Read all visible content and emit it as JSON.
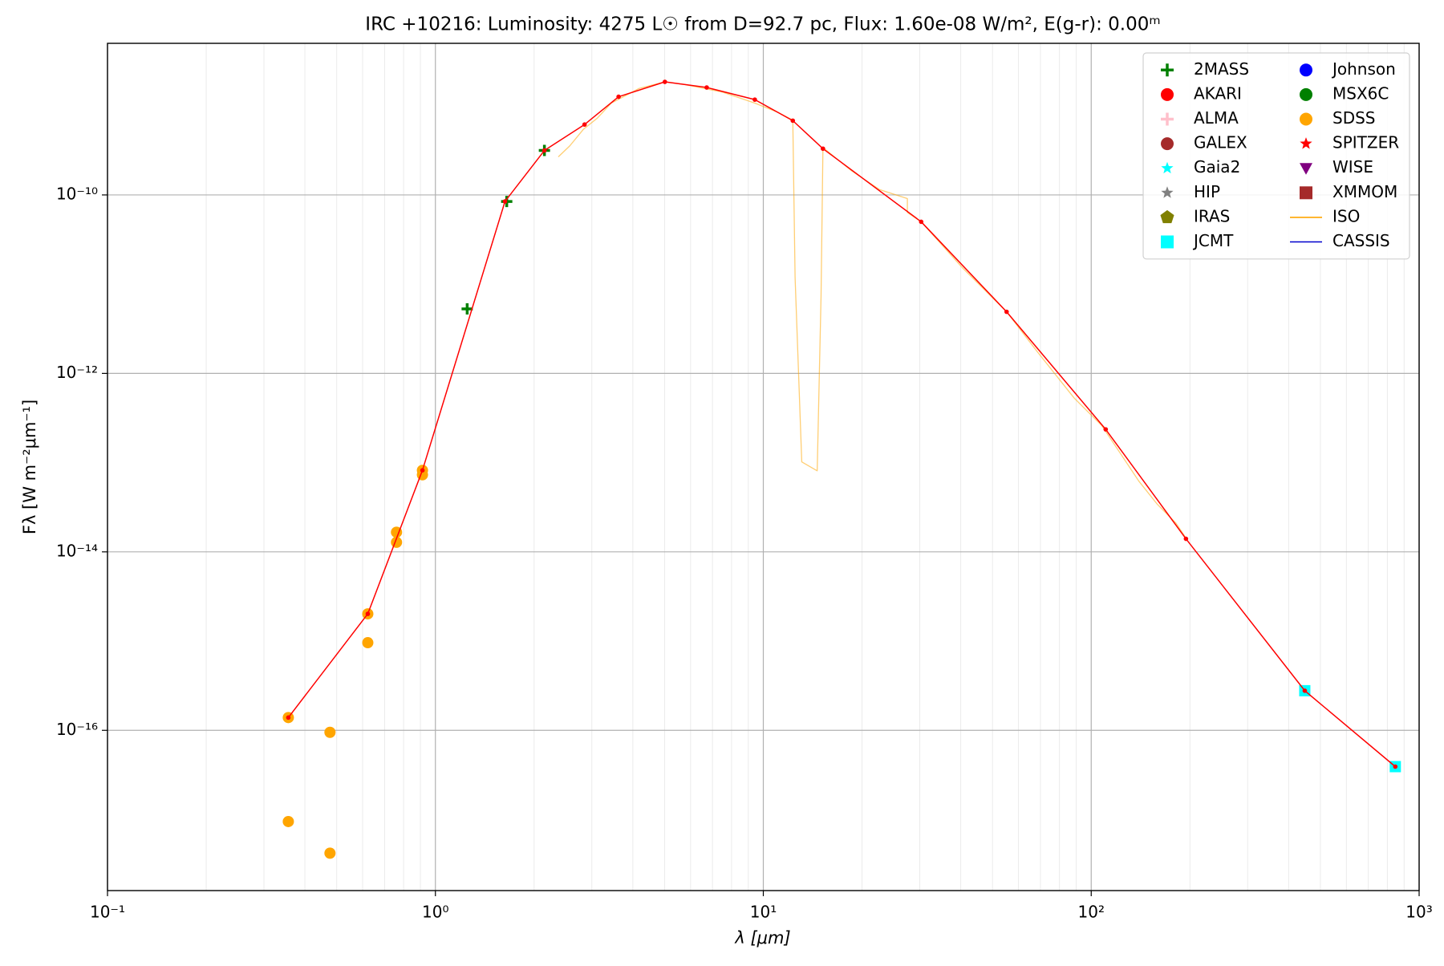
{
  "chart_data": {
    "type": "scatter",
    "title": "IRC +10216:  Luminosity: 4275 L☉ from D=92.7 pc, Flux: 1.60e-08 W/m², E(g-r): 0.00ᵐ",
    "x_label": "λ [μm]",
    "y_label": "Fλ [W m⁻²μm⁻¹]",
    "xscale": "log",
    "yscale": "log",
    "grid": true,
    "minor_grid": "x",
    "legend": "upper right",
    "xlim": [
      0.1,
      1000
    ],
    "ylim": [
      1.6e-18,
      5e-09
    ],
    "xticks": [
      {
        "value": 0.1,
        "label": "10⁻¹"
      },
      {
        "value": 1,
        "label": "10⁰"
      },
      {
        "value": 10,
        "label": "10¹"
      },
      {
        "value": 100,
        "label": "10²"
      },
      {
        "value": 1000,
        "label": "10³"
      }
    ],
    "yticks": [
      {
        "value": 1e-16,
        "label": "10⁻¹⁶"
      },
      {
        "value": 1e-14,
        "label": "10⁻¹⁴"
      },
      {
        "value": 1e-12,
        "label": "10⁻¹²"
      },
      {
        "value": 1e-10,
        "label": "10⁻¹⁰"
      }
    ],
    "series": [
      {
        "name": "2MASS",
        "color": "#008000",
        "marker": "plus",
        "x": [
          1.25,
          1.65,
          2.15
        ],
        "y": [
          5.28e-12,
          8.45e-11,
          3.15e-10
        ]
      },
      {
        "name": "AKARI",
        "color": "#ff0000",
        "marker": "circle",
        "x": [],
        "y": []
      },
      {
        "name": "ALMA",
        "color": "#ffc0cb",
        "marker": "plus",
        "x": [],
        "y": []
      },
      {
        "name": "GALEX",
        "color": "#a52a2a",
        "marker": "circle",
        "x": [],
        "y": []
      },
      {
        "name": "Gaia2",
        "color": "#00ffff",
        "marker": "star",
        "x": [],
        "y": []
      },
      {
        "name": "HIP",
        "color": "#808080",
        "marker": "star",
        "x": [],
        "y": []
      },
      {
        "name": "IRAS",
        "color": "#808000",
        "marker": "pentagon",
        "x": [],
        "y": []
      },
      {
        "name": "JCMT",
        "color": "#00ffff",
        "marker": "square",
        "x": [
          448,
          846
        ],
        "y": [
          2.78e-16,
          3.92e-17
        ]
      },
      {
        "name": "Johnson",
        "color": "#0000ff",
        "marker": "circle",
        "x": [],
        "y": []
      },
      {
        "name": "MSX6C",
        "color": "#008000",
        "marker": "circle",
        "x": [],
        "y": []
      },
      {
        "name": "SDSS",
        "color": "#ffa500",
        "marker": "circle",
        "x": [
          0.356,
          0.356,
          0.477,
          0.477,
          0.622,
          0.622,
          0.761,
          0.761,
          0.913,
          0.913
        ],
        "y": [
          1.39e-16,
          9.5e-18,
          9.5e-17,
          4.2e-18,
          2.02e-15,
          9.6e-16,
          1.66e-14,
          1.28e-14,
          8.2e-14,
          7.3e-14
        ]
      },
      {
        "name": "SPITZER",
        "color": "#ff0000",
        "marker": "star",
        "x": [],
        "y": []
      },
      {
        "name": "WISE",
        "color": "#800080",
        "marker": "triangle",
        "x": [],
        "y": []
      },
      {
        "name": "XMMOM",
        "color": "#a52a2a",
        "marker": "square",
        "x": [],
        "y": []
      },
      {
        "name": "ISO",
        "color": "#ffa500",
        "marker": "line",
        "x": [
          2.37,
          2.57,
          2.83,
          3.12,
          3.44,
          4.18,
          5.01,
          5.78,
          7.5,
          9.42,
          11.1,
          12.3,
          12.5,
          13.1,
          14.6,
          15.0,
          15.2,
          18.6,
          22.6,
          27.5,
          27.5,
          30.3,
          40.6,
          55.2,
          68.4,
          88.7,
          107.7,
          122.7,
          139.7,
          159.2,
          181.3,
          193.5
        ],
        "y": [
          2.67e-10,
          3.55e-10,
          5.46e-10,
          7.28e-10,
          1.07e-09,
          1.56e-09,
          1.85e-09,
          1.72e-09,
          1.42e-09,
          1.07e-09,
          8.4e-10,
          6.9e-10,
          1.19e-11,
          1.02e-13,
          8.1e-14,
          7.4e-12,
          3.4e-10,
          1.86e-10,
          1.15e-10,
          9.1e-11,
          6.35e-11,
          5e-11,
          1.51e-11,
          4.9e-12,
          1.76e-12,
          5.3e-13,
          2.6e-13,
          1.27e-13,
          6.2e-14,
          3.4e-14,
          2.1e-14,
          1.47e-14
        ]
      },
      {
        "name": "CASSIS",
        "color": "#0000cd",
        "marker": "line",
        "x": [],
        "y": []
      },
      {
        "color": "#ff0000",
        "marker": "dotline",
        "x": [
          0.356,
          0.622,
          0.913,
          1.63,
          2.15,
          2.85,
          3.62,
          5.01,
          6.72,
          9.42,
          12.3,
          15.2,
          30.3,
          55.2,
          110.7,
          194.5,
          448,
          846
        ],
        "y": [
          1.39e-16,
          2.02e-15,
          8.2e-14,
          8.45e-11,
          3.15e-10,
          6.15e-10,
          1.26e-09,
          1.85e-09,
          1.6e-09,
          1.17e-09,
          6.8e-10,
          3.3e-10,
          5e-11,
          4.9e-12,
          2.36e-13,
          1.4e-14,
          2.78e-16,
          3.92e-17
        ]
      }
    ]
  }
}
